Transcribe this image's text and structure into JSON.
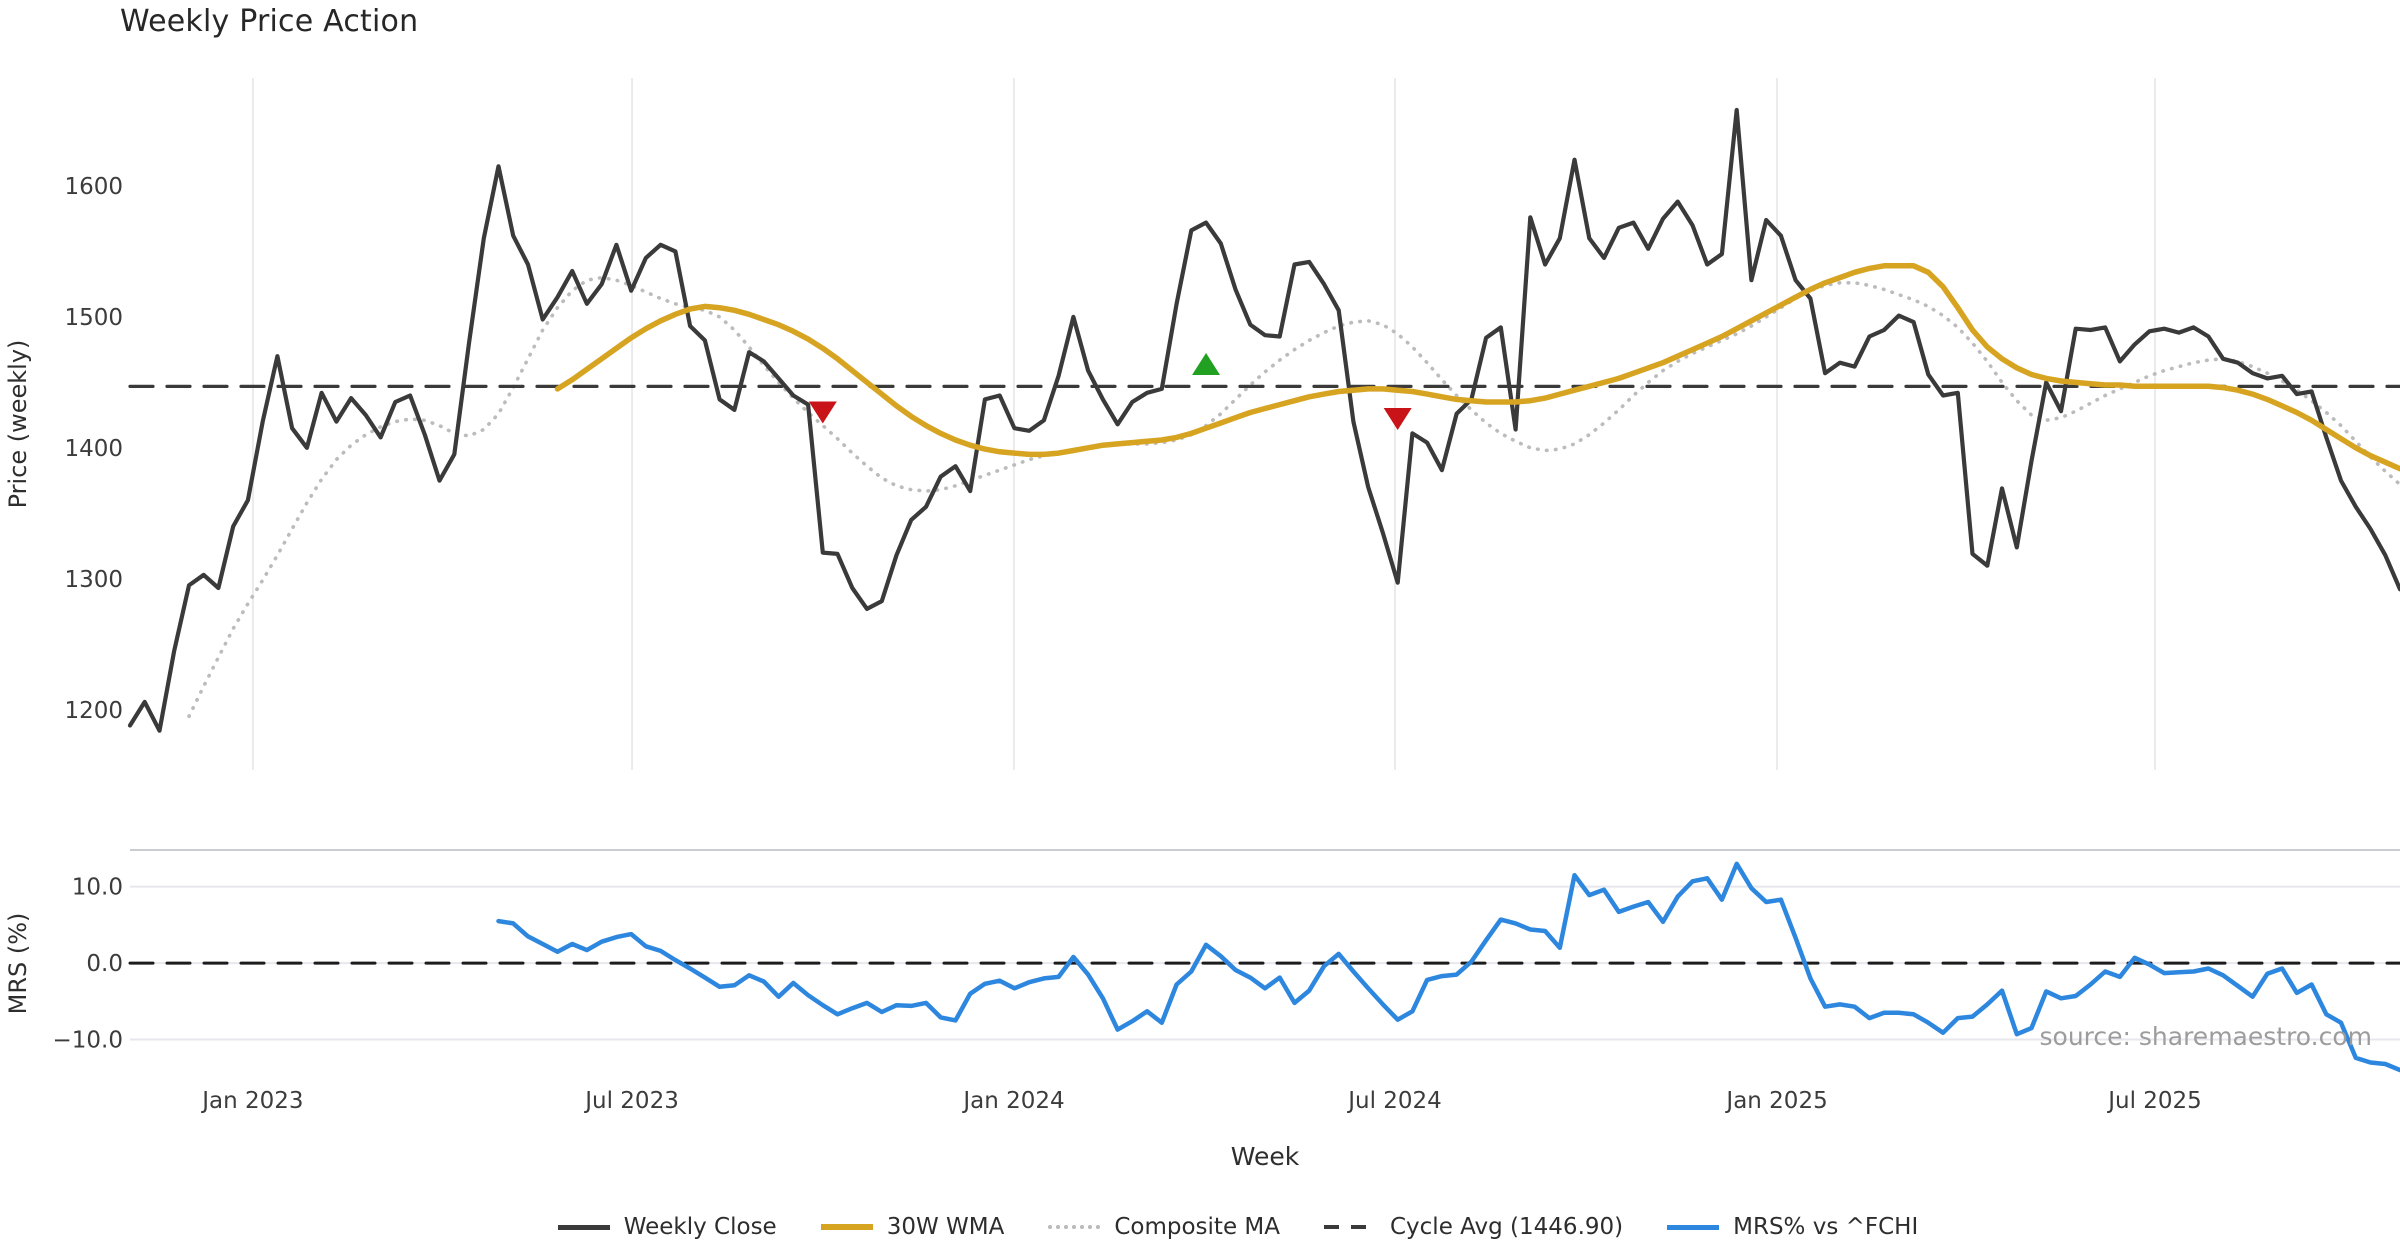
{
  "watermark": "source: sharemaestro.com",
  "legend": {
    "items": [
      {
        "label": "Weekly Close",
        "color": "#3a3a3a",
        "style": "solid"
      },
      {
        "label": "30W WMA",
        "color": "#d7a422",
        "style": "solid"
      },
      {
        "label": "Composite MA",
        "color": "#b9b9b9",
        "style": "dotted"
      },
      {
        "label": "Cycle Avg (1446.90)",
        "color": "#3a3a3a",
        "style": "dashed"
      },
      {
        "label": "MRS% vs ^FCHI",
        "color": "#2e87de",
        "style": "solid"
      }
    ]
  },
  "chart_data": {
    "type": "line",
    "title": "Weekly Price Action",
    "n_points": 155,
    "x_axis": {
      "label": "Week",
      "ticks": [
        {
          "label": "Jan 2023",
          "pos": 8.34
        },
        {
          "label": "Jul 2023",
          "pos": 34.06
        },
        {
          "label": "Jan 2024",
          "pos": 59.97
        },
        {
          "label": "Jul 2024",
          "pos": 85.82
        },
        {
          "label": "Jan 2025",
          "pos": 111.74
        },
        {
          "label": "Jul 2025",
          "pos": 137.38
        }
      ]
    },
    "panels": [
      {
        "id": "price",
        "ylabel": "Price (weekly)",
        "ylim": [
          1154,
          1682.4
        ],
        "yticks": [
          {
            "value": 1600,
            "label": "1600"
          },
          {
            "value": 1500,
            "label": "1500"
          },
          {
            "value": 1400,
            "label": "1400"
          },
          {
            "value": 1300,
            "label": "1300"
          },
          {
            "value": 1200,
            "label": "1200"
          }
        ],
        "grid": "vertical",
        "series": [
          {
            "name": "Composite MA",
            "color": "#bcbcbc",
            "style": "dotted",
            "width": 3.6,
            "start": 4,
            "values": [
              1195,
              1218,
              1240,
              1262,
              1281,
              1299,
              1318,
              1338,
              1358,
              1376,
              1391,
              1402,
              1410,
              1416,
              1420,
              1422,
              1421,
              1417,
              1411,
              1409,
              1414,
              1426,
              1446,
              1468,
              1490,
              1507,
              1520,
              1528,
              1530,
              1528,
              1524,
              1519,
              1514,
              1510,
              1507,
              1505,
              1500,
              1490,
              1477,
              1463,
              1450,
              1438,
              1427,
              1417,
              1407,
              1396,
              1386,
              1377,
              1371,
              1368,
              1367,
              1368,
              1371,
              1375,
              1379,
              1383,
              1387,
              1391,
              1394,
              1396,
              1398,
              1400,
              1402,
              1403,
              1403,
              1403,
              1404,
              1406,
              1410,
              1417,
              1426,
              1437,
              1448,
              1458,
              1467,
              1475,
              1482,
              1488,
              1493,
              1496,
              1497,
              1494,
              1487,
              1477,
              1465,
              1452,
              1440,
              1429,
              1419,
              1411,
              1405,
              1400,
              1398,
              1399,
              1403,
              1410,
              1419,
              1429,
              1440,
              1450,
              1459,
              1466,
              1472,
              1477,
              1482,
              1487,
              1493,
              1500,
              1507,
              1514,
              1520,
              1524,
              1526,
              1526,
              1524,
              1521,
              1517,
              1513,
              1508,
              1501,
              1492,
              1480,
              1466,
              1450,
              1436,
              1425,
              1421,
              1423,
              1428,
              1434,
              1440,
              1445,
              1450,
              1455,
              1459,
              1462,
              1465,
              1467,
              1468,
              1466,
              1462,
              1457,
              1451,
              1444,
              1436,
              1427,
              1417,
              1405,
              1393,
              1382,
              1372
            ]
          },
          {
            "name": "Cycle Avg",
            "color": "#3a3a3a",
            "style": "dashed",
            "width": 3.2,
            "const": 1446.9
          },
          {
            "name": "Weekly Close",
            "color": "#3a3a3a",
            "style": "solid",
            "width": 4.2,
            "start": 0,
            "values": [
              1188,
              1206,
              1184,
              1245,
              1295,
              1303,
              1293,
              1340,
              1360,
              1420,
              1470,
              1415,
              1400,
              1442,
              1420,
              1438,
              1425,
              1408,
              1435,
              1440,
              1410,
              1375,
              1395,
              1480,
              1560,
              1615,
              1562,
              1540,
              1498,
              1515,
              1535,
              1510,
              1525,
              1555,
              1520,
              1545,
              1555,
              1550,
              1493,
              1482,
              1437,
              1429,
              1473,
              1466,
              1453,
              1440,
              1433,
              1320,
              1319,
              1293,
              1277,
              1283,
              1318,
              1345,
              1355,
              1378,
              1386,
              1367,
              1437,
              1440,
              1415,
              1413,
              1421,
              1455,
              1500,
              1459,
              1437,
              1418,
              1435,
              1442,
              1445,
              1510,
              1566,
              1572,
              1556,
              1521,
              1494,
              1486,
              1485,
              1540,
              1542,
              1525,
              1505,
              1420,
              1370,
              1335,
              1297,
              1411,
              1404,
              1383,
              1426,
              1437,
              1484,
              1492,
              1414,
              1576,
              1540,
              1560,
              1620,
              1560,
              1545,
              1568,
              1572,
              1552,
              1575,
              1588,
              1570,
              1540,
              1548,
              1658,
              1528,
              1574,
              1562,
              1528,
              1514,
              1457,
              1465,
              1462,
              1485,
              1490,
              1501,
              1496,
              1456,
              1440,
              1442,
              1319,
              1310,
              1369,
              1324,
              1390,
              1450,
              1428,
              1491,
              1490,
              1492,
              1466,
              1479,
              1489,
              1491,
              1488,
              1492,
              1485,
              1468,
              1465,
              1457,
              1453,
              1455,
              1441,
              1443,
              1408,
              1375,
              1355,
              1338,
              1318,
              1292
            ]
          },
          {
            "name": "30W WMA",
            "color": "#d7a422",
            "style": "solid",
            "width": 5.5,
            "start": 29,
            "values": [
              1445,
              1452,
              1460,
              1468,
              1476,
              1484,
              1491,
              1497,
              1502,
              1506,
              1508,
              1507,
              1505,
              1502,
              1498,
              1494,
              1489,
              1483,
              1476,
              1468,
              1459,
              1450,
              1441,
              1432,
              1424,
              1417,
              1411,
              1406,
              1402,
              1399,
              1397,
              1396,
              1395,
              1395,
              1396,
              1398,
              1400,
              1402,
              1403,
              1404,
              1405,
              1406,
              1408,
              1411,
              1415,
              1419,
              1423,
              1427,
              1430,
              1433,
              1436,
              1439,
              1441,
              1443,
              1444,
              1445,
              1445,
              1444,
              1443,
              1441,
              1439,
              1437,
              1436,
              1435,
              1435,
              1435,
              1436,
              1438,
              1441,
              1444,
              1447,
              1450,
              1453,
              1457,
              1461,
              1465,
              1470,
              1475,
              1480,
              1485,
              1491,
              1497,
              1503,
              1509,
              1515,
              1521,
              1526,
              1530,
              1534,
              1537,
              1539,
              1539,
              1539,
              1534,
              1523,
              1507,
              1490,
              1477,
              1468,
              1461,
              1456,
              1453,
              1451,
              1450,
              1449,
              1448,
              1448,
              1447,
              1447,
              1447,
              1447,
              1447,
              1447,
              1446,
              1444,
              1441,
              1437,
              1432,
              1427,
              1421,
              1414,
              1407,
              1400,
              1394,
              1389,
              1384
            ]
          }
        ],
        "markers": [
          {
            "shape": "triangle-down",
            "color": "#c81419",
            "index": 47,
            "value": 1427
          },
          {
            "shape": "triangle-up",
            "color": "#22a022",
            "index": 73,
            "value": 1464
          },
          {
            "shape": "triangle-down",
            "color": "#c81419",
            "index": 86,
            "value": 1422
          }
        ]
      },
      {
        "id": "mrs",
        "ylabel": "MRS (%)",
        "ylim": [
          -14.9,
          14.8
        ],
        "yticks": [
          {
            "value": 10,
            "label": "10.0"
          },
          {
            "value": 0,
            "label": "0.0"
          },
          {
            "value": -10,
            "label": "−10.0"
          }
        ],
        "grid": "horizontal",
        "series": [
          {
            "name": "zero",
            "color": "#1c1c1c",
            "style": "dashed",
            "width": 3,
            "const": 0
          },
          {
            "name": "MRS% vs ^FCHI",
            "color": "#2e87de",
            "style": "solid",
            "width": 4.5,
            "start": 25,
            "values": [
              5.5,
              5.2,
              3.5,
              2.5,
              1.5,
              2.5,
              1.7,
              2.8,
              3.4,
              3.8,
              2.2,
              1.6,
              0.4,
              -0.7,
              -1.9,
              -3.1,
              -2.9,
              -1.6,
              -2.4,
              -4.4,
              -2.6,
              -4.2,
              -5.5,
              -6.7,
              -5.9,
              -5.2,
              -6.4,
              -5.5,
              -5.6,
              -5.2,
              -7.1,
              -7.5,
              -4.0,
              -2.7,
              -2.3,
              -3.3,
              -2.5,
              -2.0,
              -1.8,
              0.8,
              -1.5,
              -4.6,
              -8.7,
              -7.6,
              -6.3,
              -7.8,
              -2.8,
              -1.1,
              2.4,
              0.9,
              -0.9,
              -1.9,
              -3.3,
              -1.9,
              -5.2,
              -3.6,
              -0.4,
              1.2,
              -1.1,
              -3.3,
              -5.4,
              -7.4,
              -6.3,
              -2.2,
              -1.7,
              -1.5,
              0.2,
              3.0,
              5.7,
              5.2,
              4.4,
              4.2,
              2.0,
              11.5,
              8.9,
              9.6,
              6.7,
              7.4,
              8.0,
              5.4,
              8.7,
              10.7,
              11.1,
              8.3,
              13.0,
              9.8,
              8.0,
              8.3,
              3.3,
              -2.0,
              -5.7,
              -5.4,
              -5.7,
              -7.2,
              -6.5,
              -6.5,
              -6.7,
              -7.8,
              -9.1,
              -7.2,
              -7.0,
              -5.4,
              -3.6,
              -9.3,
              -8.5,
              -3.7,
              -4.6,
              -4.3,
              -2.8,
              -1.1,
              -1.8,
              0.7,
              -0.2,
              -1.3,
              -1.2,
              -1.1,
              -0.7,
              -1.6,
              -3.0,
              -4.4,
              -1.4,
              -0.7,
              -3.9,
              -2.8,
              -6.7,
              -7.8,
              -12.4,
              -13.0,
              -13.2,
              -14.0
            ]
          }
        ]
      }
    ]
  }
}
